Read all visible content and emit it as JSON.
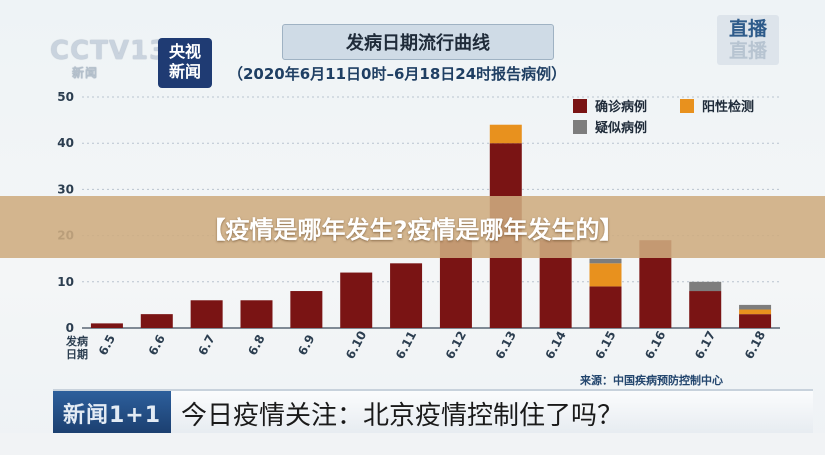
{
  "header": {
    "title": "发病日期流行曲线",
    "subtitle": "（2020年6月11日0时–6月18日24时报告病例）",
    "channel_logo": "CCTV13",
    "channel_sub": "新闻",
    "program_logo_line1": "央视",
    "program_logo_line2": "新闻",
    "live_badge": "直播",
    "live_badge_ghost": "直播"
  },
  "banner": {
    "text": "【疫情是哪年发生?疫情是哪年发生的】"
  },
  "source": "来源：中国疾病预防控制中心",
  "lower_third": {
    "tag": "新闻1+1",
    "text": "今日疫情关注：北京疫情控制住了吗？"
  },
  "colors": {
    "confirmed": "#7a1414",
    "positive": "#e8911e",
    "suspected": "#7d7d7d"
  },
  "chart_data": {
    "type": "bar",
    "stacked": true,
    "xlabel": "发病日期",
    "categories": [
      "6.5",
      "6.6",
      "6.7",
      "6.8",
      "6.9",
      "6.10",
      "6.11",
      "6.12",
      "6.13",
      "6.14",
      "6.15",
      "6.16",
      "6.17",
      "6.18"
    ],
    "series": [
      {
        "name": "确诊病例",
        "values": [
          1,
          3,
          6,
          6,
          8,
          12,
          14,
          19,
          40,
          19,
          9,
          19,
          8,
          3
        ]
      },
      {
        "name": "阳性检测",
        "values": [
          0,
          0,
          0,
          0,
          0,
          0,
          0,
          0,
          4,
          0,
          5,
          0,
          0,
          1
        ]
      },
      {
        "name": "疑似病例",
        "values": [
          0,
          0,
          0,
          0,
          0,
          0,
          0,
          0,
          0,
          0,
          1,
          0,
          2,
          1
        ]
      }
    ],
    "ylim": [
      0,
      50
    ],
    "yticks": [
      0,
      10,
      20,
      30,
      40,
      50
    ],
    "grid": true,
    "legend_position": "top-right"
  }
}
